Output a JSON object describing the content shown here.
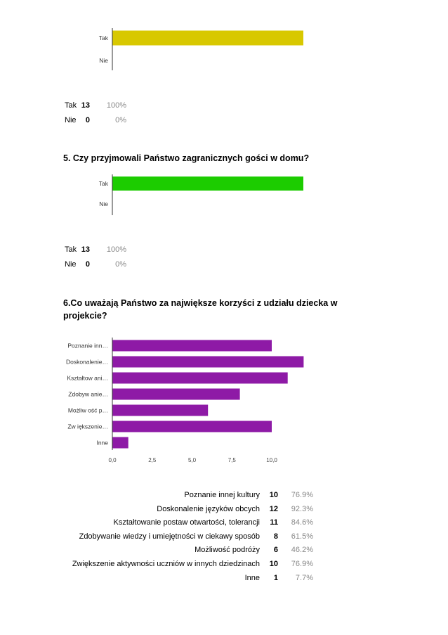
{
  "chart_data": [
    {
      "type": "bar",
      "orientation": "horizontal",
      "categories": [
        "Tak",
        "Nie"
      ],
      "values": [
        13,
        0
      ],
      "color": "#d8c800",
      "xlim": [
        0,
        13
      ],
      "grid": false,
      "summary": [
        {
          "label": "Tak",
          "count": "13",
          "pct": "100%"
        },
        {
          "label": "Nie",
          "count": "0",
          "pct": "0%"
        }
      ]
    },
    {
      "type": "bar",
      "orientation": "horizontal",
      "title": "5. Czy przyjmowali Państwo zagranicznych gości w domu?",
      "categories": [
        "Tak",
        "Nie"
      ],
      "values": [
        13,
        0
      ],
      "color": "#1ccc00",
      "xlim": [
        0,
        13
      ],
      "grid": false,
      "summary": [
        {
          "label": "Tak",
          "count": "13",
          "pct": "100%"
        },
        {
          "label": "Nie",
          "count": "0",
          "pct": "0%"
        }
      ]
    },
    {
      "type": "bar",
      "orientation": "horizontal",
      "title": "6.Co uważają Państwo za największe korzyści z udziału dziecka w projekcie?",
      "categories": [
        "Poznanie inn…",
        "Doskonalenie…",
        "Kształtow ani…",
        "Zdobyw anie…",
        "Możliw ość p…",
        "Zw iększenie…",
        "Inne"
      ],
      "values": [
        10,
        12,
        11,
        8,
        6,
        10,
        1
      ],
      "color": "#8e1aa6",
      "xlim": [
        0,
        12
      ],
      "xticks": [
        "0,0",
        "2,5",
        "5,0",
        "7,5",
        "10,0"
      ],
      "xtick_values": [
        0,
        2.5,
        5,
        7.5,
        10
      ],
      "grid": false,
      "summary": [
        {
          "label": "Poznanie innej kultury",
          "count": "10",
          "pct": "76.9%"
        },
        {
          "label": "Doskonalenie języków obcych",
          "count": "12",
          "pct": "92.3%"
        },
        {
          "label": "Kształtowanie postaw otwartości, tolerancji",
          "count": "11",
          "pct": "84.6%"
        },
        {
          "label": "Zdobywanie wiedzy i umiejętności w ciekawy sposób",
          "count": "8",
          "pct": "61.5%"
        },
        {
          "label": "Możliwość podróży",
          "count": "6",
          "pct": "46.2%"
        },
        {
          "label": "Zwiększenie aktywności uczniów w innych dziedzinach",
          "count": "10",
          "pct": "76.9%"
        },
        {
          "label": "Inne",
          "count": "1",
          "pct": "7.7%"
        }
      ]
    }
  ]
}
